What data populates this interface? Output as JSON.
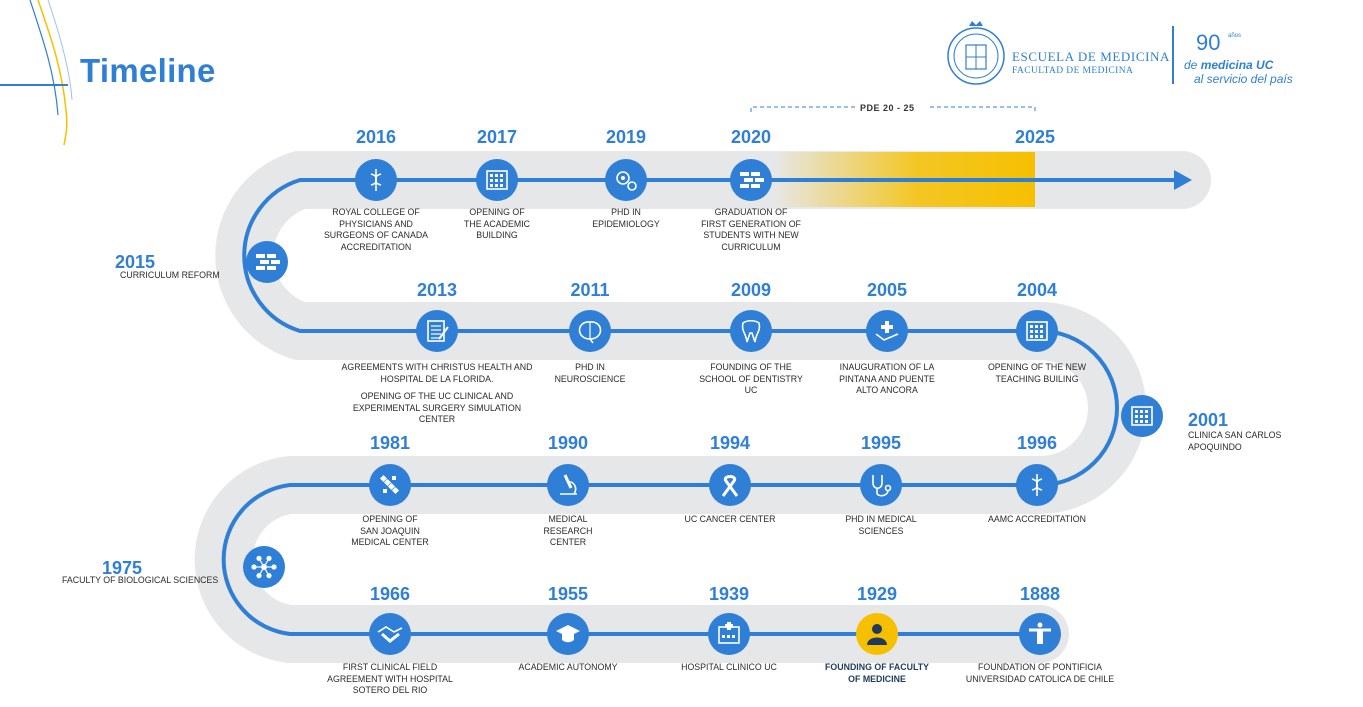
{
  "title": "Timeline",
  "logo": {
    "school_line1": "ESCUELA DE MEDICINA",
    "school_line2": "FACULTAD DE MEDICINA",
    "anniv_number": "90",
    "anniv_suffix": "años",
    "anniv_prefix": "de",
    "anniv_brand": "medicina UC",
    "anniv_tagline": "al servicio del país"
  },
  "pde_label": "PDE 20 - 25",
  "colors": {
    "accent": "#2f7fd6",
    "track": "#e6e7e9",
    "highlight": "#f6c000"
  },
  "events": [
    {
      "year": "2016",
      "desc": [
        "ROYAL COLLEGE OF",
        "PHYSICIANS AND",
        "SURGEONS OF CANADA",
        "ACCREDITATION"
      ],
      "icon": "caduceus-icon"
    },
    {
      "year": "2017",
      "desc": [
        "OPENING OF",
        "THE ACADEMIC",
        "BUILDING"
      ],
      "icon": "building-icon"
    },
    {
      "year": "2019",
      "desc": [
        "PHD IN",
        "EPIDEMIOLOGY"
      ],
      "icon": "virus-gear-icon"
    },
    {
      "year": "2020",
      "desc": [
        "GRADUATION OF",
        "FIRST GENERATION OF",
        "STUDENTS WITH NEW",
        "CURRICULUM"
      ],
      "icon": "bricks-icon"
    },
    {
      "year": "2025",
      "desc": [],
      "icon": ""
    },
    {
      "year": "2015",
      "desc": [
        "CURRICULUM REFORM"
      ],
      "icon": "bricks-icon"
    },
    {
      "year": "2013",
      "desc": [
        "AGREEMENTS WITH CHRISTUS HEALTH AND",
        "HOSPITAL DE LA FLORIDA.",
        "OPENING OF THE UC CLINICAL AND",
        "EXPERIMENTAL SURGERY SIMULATION",
        "CENTER"
      ],
      "icon": "clipboard-icon"
    },
    {
      "year": "2011",
      "desc": [
        "PHD IN",
        "NEUROSCIENCE"
      ],
      "icon": "brain-icon"
    },
    {
      "year": "2009",
      "desc": [
        "FOUNDING OF THE",
        "SCHOOL OF DENTISTRY",
        "UC"
      ],
      "icon": "tooth-icon"
    },
    {
      "year": "2005",
      "desc": [
        "INAUGURATION OF LA",
        "PINTANA AND PUENTE",
        "ALTO ANCORA"
      ],
      "icon": "care-hand-icon"
    },
    {
      "year": "2004",
      "desc": [
        "OPENING OF THE NEW",
        "TEACHING BUILING"
      ],
      "icon": "teaching-building-icon"
    },
    {
      "year": "2001",
      "desc": [
        "CLINICA SAN CARLOS",
        "APOQUINDO"
      ],
      "icon": "hospital-window-icon"
    },
    {
      "year": "1981",
      "desc": [
        "OPENING OF",
        "SAN JOAQUIN",
        "MEDICAL CENTER"
      ],
      "icon": "dna-icon"
    },
    {
      "year": "1990",
      "desc": [
        "MEDICAL",
        "RESEARCH",
        "CENTER"
      ],
      "icon": "microscope-icon"
    },
    {
      "year": "1994",
      "desc": [
        "UC CANCER CENTER"
      ],
      "icon": "ribbon-icon"
    },
    {
      "year": "1995",
      "desc": [
        "PHD IN MEDICAL",
        "SCIENCES"
      ],
      "icon": "stethoscope-icon"
    },
    {
      "year": "1996",
      "desc": [
        "AAMC ACCREDITATION"
      ],
      "icon": "rod-of-asclepius-icon"
    },
    {
      "year": "1975",
      "desc": [
        "FACULTY OF BIOLOGICAL SCIENCES"
      ],
      "icon": "molecule-icon"
    },
    {
      "year": "1966",
      "desc": [
        "FIRST CLINICAL FIELD",
        "AGREEMENT WITH HOSPITAL",
        "SOTERO DEL RIO"
      ],
      "icon": "handshake-icon"
    },
    {
      "year": "1955",
      "desc": [
        "ACADEMIC AUTONOMY"
      ],
      "icon": "graduation-cap-icon"
    },
    {
      "year": "1939",
      "desc": [
        "HOSPITAL CLINICO UC"
      ],
      "icon": "hospital-icon"
    },
    {
      "year": "1929",
      "desc": [
        "FOUNDING OF FACULTY",
        "OF MEDICINE"
      ],
      "icon": "doctor-icon",
      "highlighted": true
    },
    {
      "year": "1888",
      "desc": [
        "FOUNDATION OF PONTIFICIA",
        "UNIVERSIDAD CATOLICA DE CHILE"
      ],
      "icon": "christ-statue-icon"
    }
  ]
}
